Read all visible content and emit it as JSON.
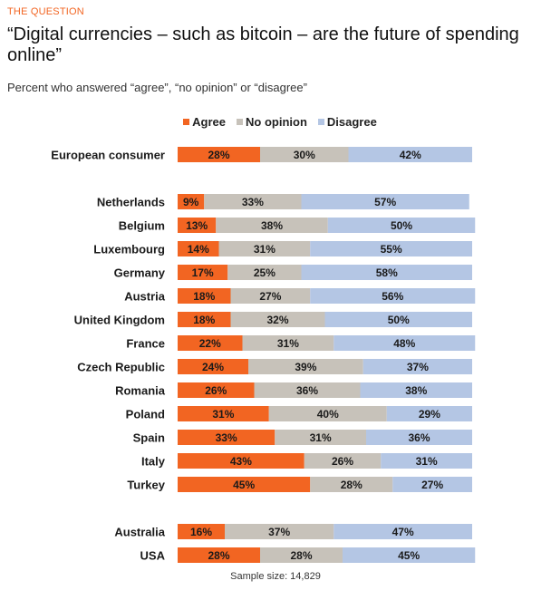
{
  "header": {
    "kicker": "THE QUESTION",
    "title": "“Digital currencies – such as bitcoin – are the future of spending online”",
    "subtitle": "Percent who answered “agree”, “no opinion” or “disagree”"
  },
  "footnote": "Sample size: 14,829",
  "colors": {
    "agree": "#f26522",
    "no_opinion": "#c7c2ba",
    "disagree": "#b4c6e4"
  },
  "chart_data": {
    "type": "bar",
    "orientation": "horizontal",
    "stacked": true,
    "xlim": [
      0,
      100
    ],
    "unit": "%",
    "legend_position": "top",
    "series": [
      {
        "name": "Agree",
        "color": "#f26522"
      },
      {
        "name": "No opinion",
        "color": "#c7c2ba"
      },
      {
        "name": "Disagree",
        "color": "#b4c6e4"
      }
    ],
    "groups": [
      {
        "rows": [
          {
            "label": "European consumer",
            "values": [
              28,
              30,
              42
            ]
          }
        ]
      },
      {
        "rows": [
          {
            "label": "Netherlands",
            "values": [
              9,
              33,
              57
            ]
          },
          {
            "label": "Belgium",
            "values": [
              13,
              38,
              50
            ]
          },
          {
            "label": "Luxembourg",
            "values": [
              14,
              31,
              55
            ]
          },
          {
            "label": "Germany",
            "values": [
              17,
              25,
              58
            ]
          },
          {
            "label": "Austria",
            "values": [
              18,
              27,
              56
            ]
          },
          {
            "label": "United Kingdom",
            "values": [
              18,
              32,
              50
            ]
          },
          {
            "label": "France",
            "values": [
              22,
              31,
              48
            ]
          },
          {
            "label": "Czech Republic",
            "values": [
              24,
              39,
              37
            ]
          },
          {
            "label": "Romania",
            "values": [
              26,
              36,
              38
            ]
          },
          {
            "label": "Poland",
            "values": [
              31,
              40,
              29
            ]
          },
          {
            "label": "Spain",
            "values": [
              33,
              31,
              36
            ]
          },
          {
            "label": "Italy",
            "values": [
              43,
              26,
              31
            ]
          },
          {
            "label": "Turkey",
            "values": [
              45,
              28,
              27
            ]
          }
        ]
      },
      {
        "rows": [
          {
            "label": "Australia",
            "values": [
              16,
              37,
              47
            ]
          },
          {
            "label": "USA",
            "values": [
              28,
              28,
              45
            ]
          }
        ]
      }
    ]
  }
}
